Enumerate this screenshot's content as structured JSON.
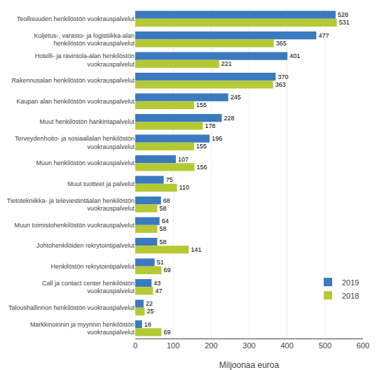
{
  "chart_data": {
    "type": "bar",
    "orientation": "horizontal",
    "categories": [
      "Teollisuuden henkilöstön vuokrauspalvelut",
      "Kuljetus-, varasto- ja logistiikka-alan\nhenkilöstön vuokrauspalvelut",
      "Hotelli- ja ravintola-alan henkilöstön\nvuokrauspalvelut",
      "Rakennusalan henkilöstön vuokrauspalvelut",
      "Kaupan alan henkilöstön vuokrauspalvelut",
      "Muut henkilöstön hankintapalvelut",
      "Terveydenhoito- ja sosiaalialan henkilöstön\nvuokrauspalvelut",
      "Muun henkilöstön vuokrauspalvelut",
      "Muut tuotteet ja palvelut",
      "Tietotekniikka- ja televiestintäalan henkilöstön\nvuokrauspalvelut",
      "Muun toimistohenkilöstön vuokrauspalvelut",
      "Johtohenkilöiden rekrytointipalvelut",
      "Henkilöstön rekrytointipalvelut",
      "Call ja contact center henkilöstön\nvuokrauspalvelut",
      "Taloushallinnon henkilöstön vuokrauspalvelut",
      "Markkinoinnin ja myynnin henkilöstön\nvuokrauspalvelut"
    ],
    "series": [
      {
        "name": "2019",
        "color": "#3b7abf",
        "values": [
          528,
          477,
          401,
          370,
          245,
          228,
          196,
          107,
          75,
          68,
          64,
          58,
          51,
          43,
          22,
          18
        ]
      },
      {
        "name": "2018",
        "color": "#b5c934",
        "values": [
          531,
          365,
          221,
          363,
          155,
          178,
          155,
          156,
          110,
          58,
          58,
          141,
          69,
          47,
          25,
          69
        ]
      }
    ],
    "xlabel": "Miljoonaa euroa",
    "xlim": [
      0,
      600
    ],
    "xticks": [
      0,
      100,
      200,
      300,
      400,
      500,
      600
    ],
    "grid": true,
    "legend": "lower right",
    "data_labels": true
  }
}
